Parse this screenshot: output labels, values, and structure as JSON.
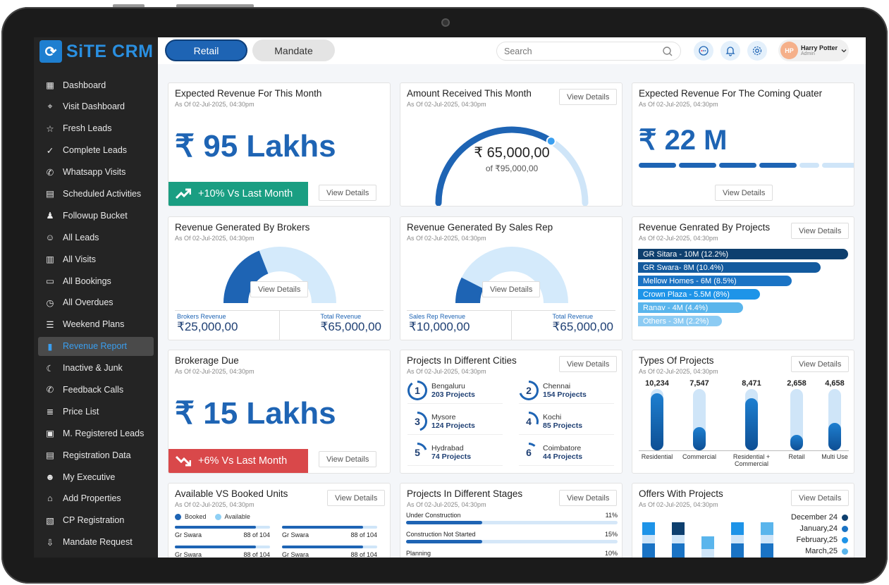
{
  "app": {
    "logo_text": "SiTE CRM"
  },
  "sidebar": {
    "items": [
      {
        "label": "Dashboard",
        "icon": "grid-icon"
      },
      {
        "label": "Visit Dashboard",
        "icon": "location-pin-icon"
      },
      {
        "label": "Fresh Leads",
        "icon": "star-icon"
      },
      {
        "label": "Complete Leads",
        "icon": "check-circle-icon"
      },
      {
        "label": "Whatsapp Visits",
        "icon": "whatsapp-icon"
      },
      {
        "label": "Scheduled Activities",
        "icon": "calendar-icon"
      },
      {
        "label": "Followup Bucket",
        "icon": "user-bucket-icon"
      },
      {
        "label": "All Leads",
        "icon": "people-icon"
      },
      {
        "label": "All Visits",
        "icon": "building-icon"
      },
      {
        "label": "All Bookings",
        "icon": "document-icon"
      },
      {
        "label": "All Overdues",
        "icon": "clock-icon"
      },
      {
        "label": "Weekend Plans",
        "icon": "checklist-icon"
      },
      {
        "label": "Revenue Report",
        "icon": "bar-chart-icon"
      },
      {
        "label": "Inactive & Junk",
        "icon": "moon-icon"
      },
      {
        "label": "Feedback Calls",
        "icon": "phone-icon"
      },
      {
        "label": "Price List",
        "icon": "price-list-icon"
      },
      {
        "label": "M. Registered Leads",
        "icon": "register-icon"
      },
      {
        "label": "Registration Data",
        "icon": "form-icon"
      },
      {
        "label": "My Executive",
        "icon": "team-icon"
      },
      {
        "label": "Add Properties",
        "icon": "property-icon"
      },
      {
        "label": "CP Registration",
        "icon": "cp-icon"
      },
      {
        "label": "Mandate Request",
        "icon": "download-icon"
      }
    ],
    "active": "Revenue Report"
  },
  "header": {
    "tabs": [
      {
        "label": "Retail"
      },
      {
        "label": "Mandate"
      }
    ],
    "search_placeholder": "Search",
    "user": {
      "name": "Harry Potter",
      "role": "Admin",
      "initials": "HP"
    }
  },
  "common": {
    "asof": "As Of 02-Jul-2025, 04:30pm",
    "view_details": "View Details"
  },
  "cards": {
    "expected_month": {
      "title": "Expected Revenue For This Month",
      "value": "₹ 95 Lakhs",
      "badge": "+10% Vs Last Month",
      "badge_color": "#1a9e82"
    },
    "amount_received": {
      "title": "Amount Received This Month",
      "value": "₹ 65,000,00",
      "of": "of ₹95,000,00",
      "progress": 0.68
    },
    "expected_quarter": {
      "title": "Expected Revenue For The Coming Quater",
      "value": "₹ 22 M",
      "segments_filled": 4,
      "segments_total": 6
    },
    "brokers": {
      "title": "Revenue Generated By Brokers",
      "l_label": "Brokers Revenue",
      "l_value": "₹25,000,00",
      "r_label": "Total Revenue",
      "r_value": "₹65,000,00",
      "fraction": 0.38
    },
    "sales_rep": {
      "title": "Revenue Generated By Sales Rep",
      "l_label": "Sales Rep Revenue",
      "l_value": "₹10,000,00",
      "r_label": "Total Revenue",
      "r_value": "₹65,000,00",
      "fraction": 0.15
    },
    "projects_rev": {
      "title": "Revenue Genrated By Projects",
      "bars": [
        {
          "label": "GR Sitara - 10M (12.2%)",
          "width": 1.0,
          "color": "#0e3f6e"
        },
        {
          "label": "GR Swara- 8M (10.4%)",
          "width": 0.87,
          "color": "#135a9e"
        },
        {
          "label": "Mellow Homes - 6M (8.5%)",
          "width": 0.73,
          "color": "#1a73c4"
        },
        {
          "label": "Crown Plaza - 5.5M (8%)",
          "width": 0.58,
          "color": "#1e94e8"
        },
        {
          "label": "Ranav - 4M (4.4%)",
          "width": 0.5,
          "color": "#5ab5ec"
        },
        {
          "label": "Others - 3M (2.2%)",
          "width": 0.4,
          "color": "#8ccbf3"
        }
      ]
    },
    "brokerage": {
      "title": "Brokerage Due",
      "value": "₹ 15 Lakhs",
      "badge": "+6% Vs Last Month",
      "badge_color": "#d9484a"
    },
    "cities": {
      "title": "Projects In Different Cities",
      "items": [
        {
          "rank": "1",
          "name": "Bengaluru",
          "count": "203 Projects",
          "arc": 0.9
        },
        {
          "rank": "2",
          "name": "Chennai",
          "count": "154 Projects",
          "arc": 0.7
        },
        {
          "rank": "3",
          "name": "Mysore",
          "count": "124 Projects",
          "arc": 0.45
        },
        {
          "rank": "4",
          "name": "Kochi",
          "count": "85 Projects",
          "arc": 0.3
        },
        {
          "rank": "5",
          "name": "Hydrabad",
          "count": "74 Projects",
          "arc": 0.2
        },
        {
          "rank": "6",
          "name": "Coimbatore",
          "count": "44 Projects",
          "arc": 0.12
        }
      ]
    },
    "types": {
      "title": "Types Of Projects",
      "chart_data": {
        "type": "bar",
        "categories": [
          "Residential",
          "Commercial",
          "Residential + Commercial",
          "Retail",
          "Multi Use"
        ],
        "values": [
          10234,
          7547,
          8471,
          2658,
          4658
        ],
        "value_labels": [
          "10,234",
          "7,547",
          "8,471",
          "2,658",
          "4,658"
        ],
        "fill_fraction": [
          0.93,
          0.38,
          0.85,
          0.25,
          0.45
        ]
      }
    },
    "units": {
      "title": "Available VS Booked Units",
      "legend": [
        {
          "label": "Booked",
          "color": "#1e64b4"
        },
        {
          "label": "Available",
          "color": "#8fd0f5"
        }
      ],
      "rows": [
        {
          "name": "Gr Swara",
          "value": "88 of 104",
          "fraction": 0.85
        },
        {
          "name": "Gr Swara",
          "value": "88 of 104",
          "fraction": 0.85
        },
        {
          "name": "Gr Swara",
          "value": "88 of 104",
          "fraction": 0.85
        },
        {
          "name": "Gr Swara",
          "value": "88 of 104",
          "fraction": 0.85
        }
      ]
    },
    "stages": {
      "title": "Projects In Different Stages",
      "items": [
        {
          "label": "Under Construction",
          "value": "11%",
          "fraction": 0.36
        },
        {
          "label": "Construction Not Started",
          "value": "15%",
          "fraction": 0.36
        },
        {
          "label": "Planning",
          "value": "10%",
          "fraction": 0.3
        }
      ]
    },
    "offers": {
      "title": "Offers With Projects",
      "legend": [
        {
          "label": "December 24",
          "color": "#0e3f6e"
        },
        {
          "label": "January,24",
          "color": "#1a73c4"
        },
        {
          "label": "February,25",
          "color": "#1e94e8"
        },
        {
          "label": "March,25",
          "color": "#5ab5ec"
        }
      ]
    }
  }
}
